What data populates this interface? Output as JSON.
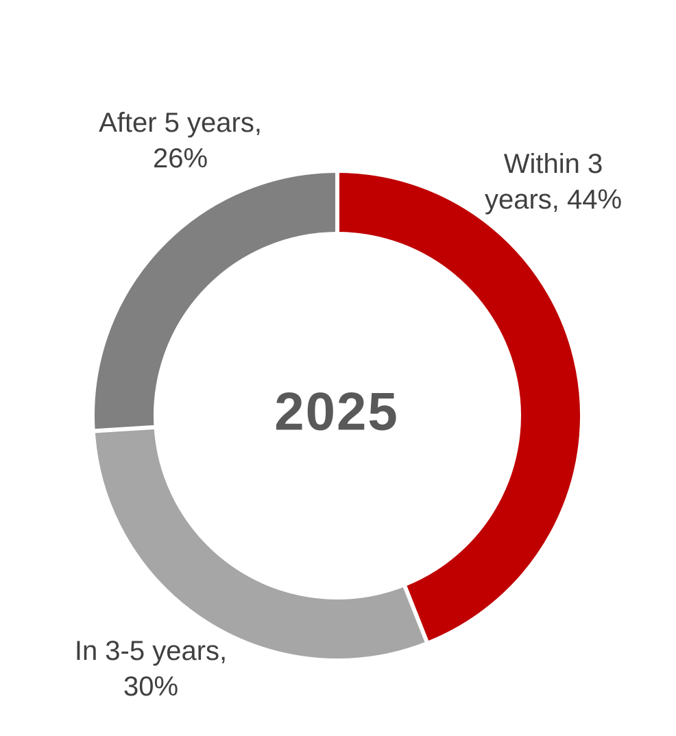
{
  "chart_data": {
    "type": "pie",
    "subtype": "donut",
    "title": "",
    "center_label": "2025",
    "unit": "%",
    "start_angle_deg": 0,
    "direction": "clockwise",
    "categories": [
      "Within 3 years",
      "In 3-5 years",
      "After 5 years"
    ],
    "values": [
      44,
      30,
      26
    ],
    "slices": [
      {
        "label": "Within 3 years",
        "value": 44,
        "color": "#C00000",
        "data_label_lines": [
          "Within 3",
          "years, 44%"
        ]
      },
      {
        "label": "In 3-5 years",
        "value": 30,
        "color": "#A6A6A6",
        "data_label_lines": [
          "In 3-5 years,",
          "30%"
        ]
      },
      {
        "label": "After 5 years",
        "value": 26,
        "color": "#808080",
        "data_label_lines": [
          "After 5 years,",
          "26%"
        ]
      }
    ],
    "colors": {
      "slice_separator": "#FFFFFF",
      "data_label_text": "#404040",
      "center_label_text": "#595959",
      "background": "#FFFFFF"
    },
    "legend": "none",
    "layout_hint": "labels placed outside ring; year label centered in hole"
  }
}
